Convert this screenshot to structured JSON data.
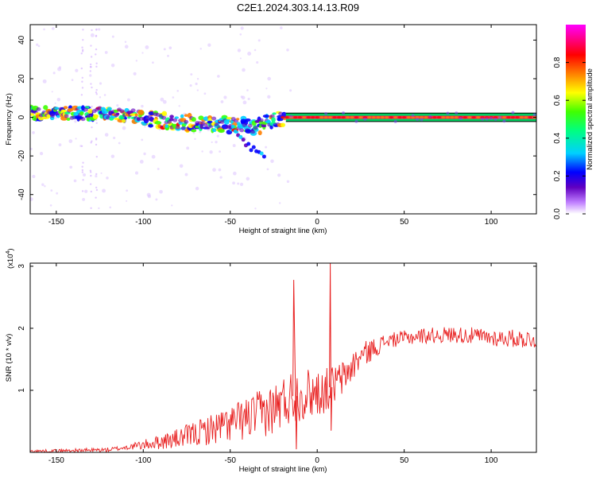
{
  "title": "C2E1.2024.303.14.13.R09",
  "chart_data": [
    {
      "type": "heatmap",
      "title": "C2E1.2024.303.14.13.R09",
      "xlabel": "Height of straight line (km)",
      "ylabel": "Frequency (Hz)",
      "xlim": [
        -165,
        126
      ],
      "ylim": [
        -50,
        48
      ],
      "xticks": [
        -150,
        -100,
        -50,
        0,
        50,
        100
      ],
      "yticks": [
        -40,
        -20,
        0,
        20,
        40
      ],
      "colorbar": {
        "label": "Normalized spectral amplitude",
        "range": [
          0,
          1
        ],
        "ticks": [
          0.0,
          0.2,
          0.4,
          0.6,
          0.8
        ],
        "colors": [
          "#ffffff",
          "#c080ff",
          "#6000c0",
          "#0000ff",
          "#00d0ff",
          "#00ff80",
          "#40ff00",
          "#ffff00",
          "#ff8000",
          "#ff0000",
          "#ff0080",
          "#ff00ff"
        ]
      },
      "ridge": [
        {
          "x": -165,
          "f": 2
        },
        {
          "x": -140,
          "f": 2
        },
        {
          "x": -120,
          "f": 2
        },
        {
          "x": -100,
          "f": 0
        },
        {
          "x": -80,
          "f": -3
        },
        {
          "x": -60,
          "f": -3
        },
        {
          "x": -45,
          "f": -4
        },
        {
          "x": -38,
          "f": -6
        },
        {
          "x": -25,
          "f": -2
        },
        {
          "x": -18,
          "f": 0
        },
        {
          "x": 0,
          "f": 0
        },
        {
          "x": 126,
          "f": 0
        }
      ],
      "branch": [
        {
          "x": -50,
          "f": -4
        },
        {
          "x": -45,
          "f": -10
        },
        {
          "x": -40,
          "f": -15
        },
        {
          "x": -30,
          "f": -20
        }
      ]
    },
    {
      "type": "line",
      "xlabel": "Height of straight line (km)",
      "ylabel": "SNR (10 * v/v)",
      "yscale_note": "(x10",
      "yscale_exp": "4",
      "xlim": [
        -165,
        126
      ],
      "ylim": [
        0,
        3.05
      ],
      "xticks": [
        -150,
        -100,
        -50,
        0,
        50,
        100
      ],
      "yticks": [
        1,
        2,
        3
      ],
      "color": "#e82020",
      "envelope": [
        {
          "x": -165,
          "y": 0.02
        },
        {
          "x": -140,
          "y": 0.03
        },
        {
          "x": -120,
          "y": 0.04
        },
        {
          "x": -100,
          "y": 0.12
        },
        {
          "x": -80,
          "y": 0.22
        },
        {
          "x": -60,
          "y": 0.38
        },
        {
          "x": -40,
          "y": 0.55
        },
        {
          "x": -25,
          "y": 0.7
        },
        {
          "x": -15,
          "y": 0.9
        },
        {
          "x": -5,
          "y": 0.95
        },
        {
          "x": 5,
          "y": 1.0
        },
        {
          "x": 15,
          "y": 1.2
        },
        {
          "x": 25,
          "y": 1.55
        },
        {
          "x": 40,
          "y": 1.8
        },
        {
          "x": 60,
          "y": 1.88
        },
        {
          "x": 80,
          "y": 1.9
        },
        {
          "x": 100,
          "y": 1.85
        },
        {
          "x": 126,
          "y": 1.82
        }
      ],
      "noise_amplitude": [
        {
          "x": -165,
          "a": 0.02
        },
        {
          "x": -110,
          "a": 0.04
        },
        {
          "x": -90,
          "a": 0.12
        },
        {
          "x": -50,
          "a": 0.3
        },
        {
          "x": -20,
          "a": 0.45
        },
        {
          "x": 0,
          "a": 0.4
        },
        {
          "x": 20,
          "a": 0.25
        },
        {
          "x": 40,
          "a": 0.12
        },
        {
          "x": 126,
          "a": 0.15
        }
      ],
      "spikes": [
        {
          "x": -13.5,
          "y": 2.78
        },
        {
          "x": -12,
          "y": 0.05
        },
        {
          "x": 7.5,
          "y": 3.05
        },
        {
          "x": 8,
          "y": 0.35
        }
      ]
    }
  ]
}
